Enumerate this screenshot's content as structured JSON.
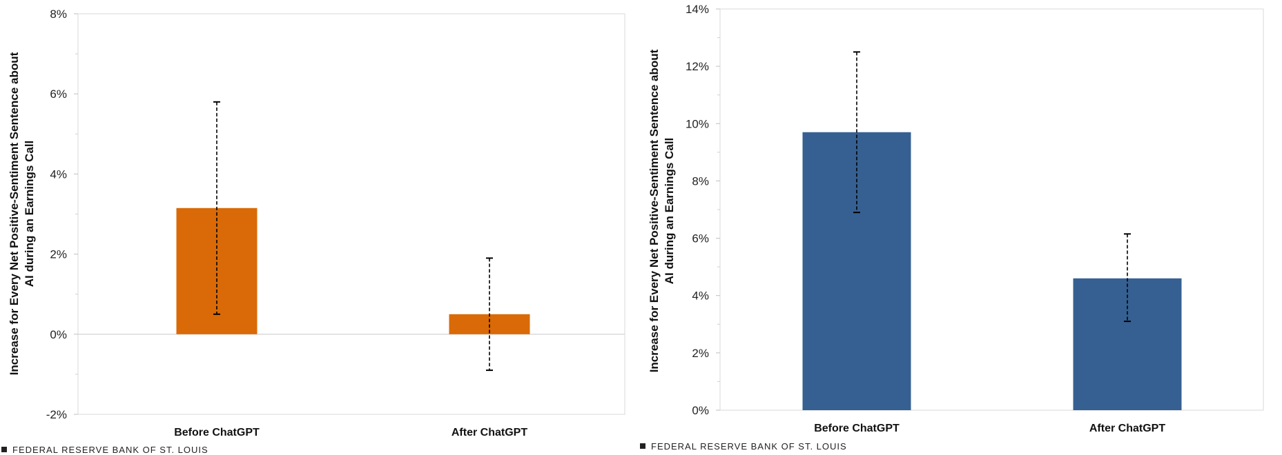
{
  "source_label": "FEDERAL RESERVE BANK OF ST. LOUIS",
  "colors": {
    "left_bar": "#D96A07",
    "right_bar": "#366092",
    "grid": "#d9d9d9",
    "error_bar": "#000000"
  },
  "chart_data": [
    {
      "type": "bar",
      "title": "",
      "ylabel_lines": [
        "Increase for Every Net Positive-Sentiment Sentence about",
        "AI during an Earnings Call"
      ],
      "xlabel": "",
      "categories": [
        "Before ChatGPT",
        "After ChatGPT"
      ],
      "values": [
        3.15,
        0.5
      ],
      "error_low": [
        0.5,
        -0.9
      ],
      "error_high": [
        5.8,
        1.9
      ],
      "ylim": [
        -2,
        8
      ],
      "yticks": [
        -2,
        0,
        2,
        4,
        6,
        8
      ],
      "ytick_labels": [
        "-2%",
        "0%",
        "2%",
        "4%",
        "6%",
        "8%"
      ],
      "grid": false,
      "legend": "none"
    },
    {
      "type": "bar",
      "title": "",
      "ylabel_lines": [
        "Increase for Every Net Positive-Sentiment Sentence about",
        "AI during an Earnings Call"
      ],
      "xlabel": "",
      "categories": [
        "Before ChatGPT",
        "After ChatGPT"
      ],
      "values": [
        9.7,
        4.6
      ],
      "error_low": [
        6.9,
        3.1
      ],
      "error_high": [
        12.5,
        6.15
      ],
      "ylim": [
        0,
        14
      ],
      "yticks": [
        0,
        2,
        4,
        6,
        8,
        10,
        12,
        14
      ],
      "ytick_labels": [
        "0%",
        "2%",
        "4%",
        "6%",
        "8%",
        "10%",
        "12%",
        "14%"
      ],
      "grid": false,
      "legend": "none"
    }
  ]
}
